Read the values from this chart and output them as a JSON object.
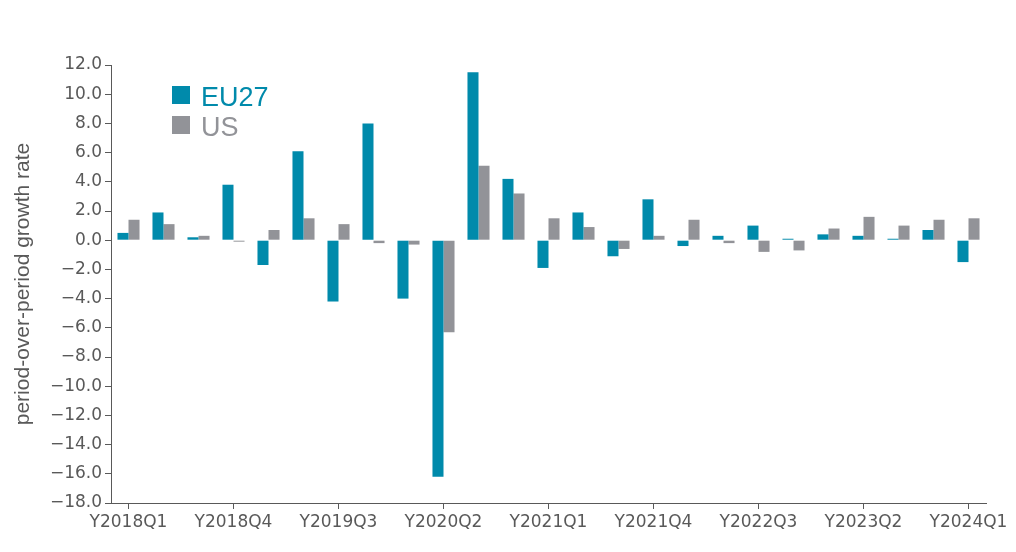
{
  "chart_data": {
    "type": "bar",
    "categories": [
      "Y2018Q1",
      null,
      null,
      "Y2018Q4",
      null,
      null,
      "Y2019Q3",
      null,
      null,
      "Y2020Q2",
      null,
      null,
      "Y2021Q1",
      null,
      null,
      "Y2021Q4",
      null,
      null,
      "Y2022Q3",
      null,
      null,
      "Y2023Q2",
      null,
      null,
      "Y2024Q1"
    ],
    "series": [
      {
        "name": "EU27",
        "color": "#008aab",
        "values": [
          0.5,
          1.9,
          0.2,
          3.8,
          -1.7,
          6.1,
          -4.2,
          8.0,
          -4.0,
          -16.2,
          11.5,
          4.2,
          -1.9,
          1.9,
          -1.1,
          2.8,
          -0.4,
          0.3,
          1.0,
          0.1,
          0.4,
          0.3,
          0.1,
          0.7,
          -1.5
        ]
      },
      {
        "name": "US",
        "color": "#929398",
        "values": [
          1.4,
          1.1,
          0.3,
          -0.1,
          0.7,
          1.5,
          1.1,
          -0.2,
          -0.3,
          -6.3,
          5.1,
          3.2,
          1.5,
          0.9,
          -0.6,
          0.3,
          1.4,
          -0.2,
          -0.8,
          -0.7,
          0.8,
          1.6,
          1.0,
          1.4,
          1.5
        ]
      }
    ],
    "ylabel": "period-over-period growth rate",
    "ylim": [
      -18,
      12
    ],
    "yticks": [
      {
        "value": 12,
        "label": "12.0"
      },
      {
        "value": 10,
        "label": "10.0"
      },
      {
        "value": 8,
        "label": "8.0"
      },
      {
        "value": 6,
        "label": "6.0"
      },
      {
        "value": 4,
        "label": "4.0"
      },
      {
        "value": 2,
        "label": "2.0"
      },
      {
        "value": 0,
        "label": "0.0"
      },
      {
        "value": -2,
        "label": "−2.0"
      },
      {
        "value": -4,
        "label": "−4.0"
      },
      {
        "value": -6,
        "label": "−6.0"
      },
      {
        "value": -8,
        "label": "−8.0"
      },
      {
        "value": -10,
        "label": "−10.0"
      },
      {
        "value": -12,
        "label": "−12.0"
      },
      {
        "value": -14,
        "label": "−14.0"
      },
      {
        "value": -16,
        "label": "−16.0"
      },
      {
        "value": -18,
        "label": "−18.0"
      }
    ],
    "grid": false,
    "legend": "top left"
  }
}
